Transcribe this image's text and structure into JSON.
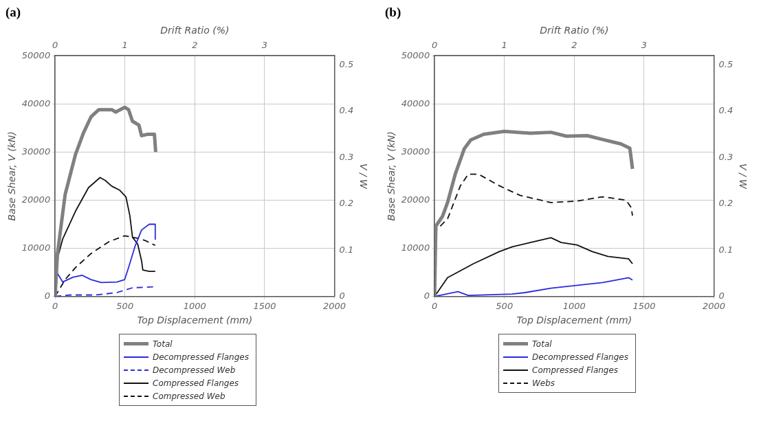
{
  "chart_data": [
    {
      "type": "line",
      "title": "(a)",
      "xlabel": "Top Displacement (mm)",
      "ylabel": "Base Shear, V (kN)",
      "y2label": "V / W",
      "x2label": "Drift Ratio (%)",
      "xlim": [
        0,
        2000
      ],
      "xticks": [
        0,
        500,
        1000,
        1500,
        2000
      ],
      "x2lim": [
        0,
        4
      ],
      "x2ticks": [
        0,
        1,
        2,
        3
      ],
      "ylim": [
        0,
        50000
      ],
      "yticks": [
        0,
        10000,
        20000,
        30000,
        40000,
        50000
      ],
      "y2lim": [
        0,
        0.52
      ],
      "y2ticks": [
        0,
        0.1,
        0.2,
        0.3,
        0.4,
        0.5
      ],
      "grid": true,
      "legend": "bottom",
      "marker": "none",
      "series": [
        {
          "name": "Total",
          "color": "#808080",
          "line_style": "solid",
          "x": [
            0,
            17,
            72,
            146,
            202,
            257,
            313,
            406,
            433,
            498,
            526,
            554,
            600,
            619,
            665,
            711,
            720
          ],
          "values": [
            0,
            8900,
            21200,
            29500,
            33900,
            37300,
            38800,
            38800,
            38300,
            39300,
            38800,
            36400,
            35600,
            33400,
            33700,
            33700,
            30000
          ]
        },
        {
          "name": "Decompressed Flanges",
          "color": "#2a2ae0",
          "line_style": "solid",
          "x": [
            0,
            17,
            54,
            128,
            193,
            257,
            331,
            443,
            498,
            526,
            572,
            619,
            674,
            717,
            717
          ],
          "values": [
            0,
            4800,
            3000,
            4000,
            4400,
            3500,
            2900,
            3000,
            3500,
            6000,
            10400,
            13800,
            15000,
            15000,
            11900
          ]
        },
        {
          "name": "Decompressed Web",
          "color": "#2a2ae0",
          "line_style": "dashed",
          "x": [
            0,
            109,
            294,
            443,
            554,
            717
          ],
          "values": [
            0,
            300,
            300,
            800,
            1800,
            2000
          ]
        },
        {
          "name": "Compressed Flanges",
          "color": "#111111",
          "line_style": "solid",
          "x": [
            0,
            17,
            54,
            146,
            239,
            322,
            359,
            406,
            461,
            507,
            535,
            554,
            591,
            619,
            628,
            674,
            717
          ],
          "values": [
            0,
            7900,
            11900,
            17700,
            22600,
            24700,
            24100,
            22900,
            22100,
            20700,
            16800,
            12300,
            10900,
            7400,
            5500,
            5200,
            5200
          ]
        },
        {
          "name": "Compressed Web",
          "color": "#111111",
          "line_style": "dashed",
          "x": [
            0,
            72,
            146,
            257,
            387,
            498,
            591,
            646,
            717
          ],
          "values": [
            0,
            3500,
            6000,
            8900,
            11400,
            12600,
            12100,
            11600,
            10600
          ]
        }
      ]
    },
    {
      "type": "line",
      "title": "(b)",
      "xlabel": "Top Displacement (mm)",
      "ylabel": "Base Shear, V (kN)",
      "y2label": "V / W",
      "x2label": "Drift Ratio (%)",
      "xlim": [
        0,
        2000
      ],
      "xticks": [
        0,
        500,
        1000,
        1500,
        2000
      ],
      "x2lim": [
        0,
        4
      ],
      "x2ticks": [
        0,
        1,
        2,
        3
      ],
      "ylim": [
        0,
        50000
      ],
      "yticks": [
        0,
        10000,
        20000,
        30000,
        40000,
        50000
      ],
      "y2lim": [
        0,
        0.52
      ],
      "y2ticks": [
        0,
        0.1,
        0.2,
        0.3,
        0.4,
        0.5
      ],
      "grid": true,
      "legend": "bottom",
      "marker": "none",
      "series": [
        {
          "name": "Total",
          "color": "#808080",
          "line_style": "solid",
          "x": [
            0,
            9,
            56,
            93,
            148,
            213,
            259,
            352,
            500,
            685,
            833,
            944,
            1093,
            1204,
            1333,
            1398,
            1417
          ],
          "values": [
            0,
            14600,
            16600,
            19500,
            25400,
            30700,
            32500,
            33700,
            34300,
            33900,
            34100,
            33300,
            33400,
            32600,
            31700,
            30800,
            26500
          ]
        },
        {
          "name": "Decompressed Flanges",
          "color": "#2a2ae0",
          "line_style": "solid",
          "x": [
            0,
            167,
            241,
            556,
            648,
            833,
            1204,
            1389,
            1417
          ],
          "values": [
            0,
            1000,
            200,
            500,
            800,
            1700,
            2900,
            3900,
            3400
          ]
        },
        {
          "name": "Compressed Flanges",
          "color": "#111111",
          "line_style": "solid",
          "x": [
            0,
            93,
            278,
            463,
            556,
            685,
            833,
            907,
            1019,
            1130,
            1241,
            1389,
            1417
          ],
          "values": [
            0,
            3900,
            6800,
            9300,
            10300,
            11200,
            12200,
            11200,
            10700,
            9300,
            8300,
            7800,
            6800
          ]
        },
        {
          "name": "Webs",
          "color": "#111111",
          "line_style": "dashed",
          "x": [
            0,
            9,
            93,
            185,
            241,
            315,
            463,
            611,
            833,
            1019,
            1204,
            1370,
            1407,
            1417
          ],
          "values": [
            0,
            13700,
            16100,
            23000,
            25400,
            25400,
            23000,
            21000,
            19500,
            19800,
            20700,
            20000,
            18500,
            16800
          ]
        }
      ]
    }
  ]
}
